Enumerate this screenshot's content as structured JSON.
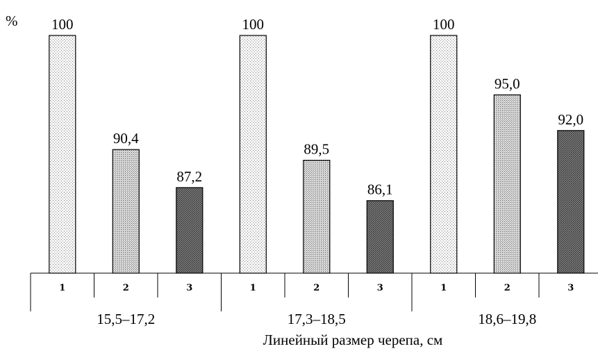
{
  "chart_data": {
    "type": "bar",
    "y_unit_label": "%",
    "xlabel": "Линейный размер черепа, см",
    "groups": [
      {
        "label": "15,5–17,2",
        "bars": [
          {
            "category": "1",
            "value": 100,
            "value_label": "100"
          },
          {
            "category": "2",
            "value": 90.4,
            "value_label": "90,4"
          },
          {
            "category": "3",
            "value": 87.2,
            "value_label": "87,2"
          }
        ]
      },
      {
        "label": "17,3–18,5",
        "bars": [
          {
            "category": "1",
            "value": 100,
            "value_label": "100"
          },
          {
            "category": "2",
            "value": 89.5,
            "value_label": "89,5"
          },
          {
            "category": "3",
            "value": 86.1,
            "value_label": "86,1"
          }
        ]
      },
      {
        "label": "18,6–19,8",
        "bars": [
          {
            "category": "1",
            "value": 100,
            "value_label": "100"
          },
          {
            "category": "2",
            "value": 95.0,
            "value_label": "95,0"
          },
          {
            "category": "3",
            "value": 92.0,
            "value_label": "92,0"
          }
        ]
      }
    ],
    "ylim": [
      80.0,
      100
    ],
    "grid": false,
    "legend": "none",
    "colors": {
      "bar1_fill": "#efefef",
      "bar2_fill": "#cfcfcf",
      "bar3_fill": "#6f6f6f",
      "stroke": "#000000"
    }
  }
}
